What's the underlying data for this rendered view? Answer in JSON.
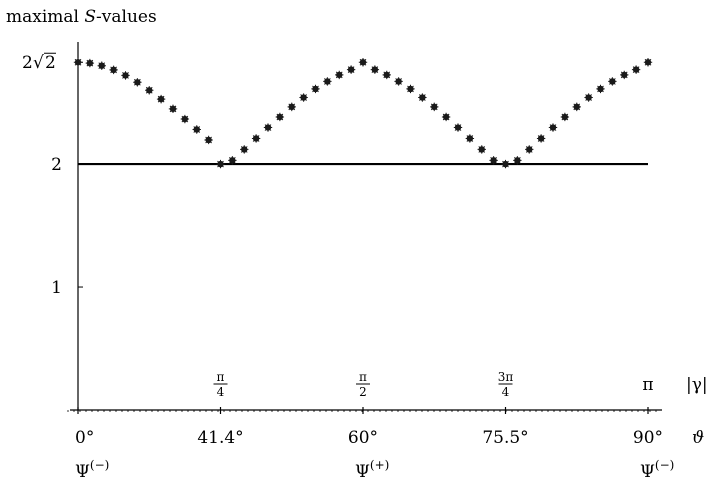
{
  "chart_data": {
    "type": "scatter",
    "title": "",
    "ylabel_prefix": "maximal ",
    "ylabel_var": "S",
    "ylabel_suffix": "-values",
    "xlabel_gamma": "|γ|",
    "xlabel_theta": "ϑ",
    "ylim": [
      0,
      2.83
    ],
    "xlim": [
      0,
      3.1416
    ],
    "yticks": [
      {
        "value": 1,
        "label": "1"
      },
      {
        "value": 2,
        "label": "2"
      },
      {
        "value": 2.828,
        "label_prefix": "2",
        "label_radical": "√",
        "label_radicand": "2"
      }
    ],
    "gamma_ticks": [
      {
        "value": 0.7854,
        "num": "π",
        "den": "4"
      },
      {
        "value": 1.5708,
        "num": "π",
        "den": "2"
      },
      {
        "value": 2.3562,
        "num": "3π",
        "den": "4"
      },
      {
        "value": 3.1416,
        "label": "π"
      }
    ],
    "theta_ticks": [
      {
        "value": 0,
        "label": "0°"
      },
      {
        "value": 0.7854,
        "label": "41.4°"
      },
      {
        "value": 1.5708,
        "label": "60°"
      },
      {
        "value": 2.3562,
        "label": "75.5°"
      },
      {
        "value": 3.1416,
        "label": "90°"
      }
    ],
    "state_labels": [
      {
        "value": 0,
        "base": "Ψ",
        "sup": "(−)"
      },
      {
        "value": 1.5708,
        "base": "Ψ",
        "sup": "(+)"
      },
      {
        "value": 3.1416,
        "base": "Ψ",
        "sup": "(−)"
      }
    ],
    "reference_line": {
      "y": 2
    },
    "series": [
      {
        "x": [
          0.0,
          0.0654,
          0.1309,
          0.1963,
          0.2618,
          0.3272,
          0.3927,
          0.4581,
          0.5236,
          0.589,
          0.6545,
          0.7199,
          0.7854,
          0.8508,
          0.9163,
          0.9817,
          1.0472,
          1.1126,
          1.1781,
          1.2435,
          1.309,
          1.3744,
          1.4399,
          1.5053,
          1.5708,
          1.6362,
          1.7017,
          1.7671,
          1.8326,
          1.898,
          1.9635,
          2.0289,
          2.0944,
          2.1598,
          2.2253,
          2.2907,
          2.3562,
          2.4216,
          2.4871,
          2.5525,
          2.618,
          2.6834,
          2.7489,
          2.8143,
          2.8798,
          2.9452,
          3.0107,
          3.0761,
          3.1416
        ],
        "y": [
          2.828,
          2.821,
          2.8,
          2.766,
          2.721,
          2.665,
          2.6,
          2.528,
          2.449,
          2.366,
          2.281,
          2.196,
          2.0,
          2.03,
          2.119,
          2.208,
          2.297,
          2.383,
          2.465,
          2.541,
          2.611,
          2.672,
          2.725,
          2.768,
          2.828,
          2.768,
          2.725,
          2.672,
          2.611,
          2.541,
          2.465,
          2.383,
          2.297,
          2.208,
          2.119,
          2.03,
          2.0,
          2.03,
          2.119,
          2.208,
          2.297,
          2.383,
          2.465,
          2.541,
          2.611,
          2.672,
          2.725,
          2.768,
          2.828
        ]
      }
    ]
  }
}
